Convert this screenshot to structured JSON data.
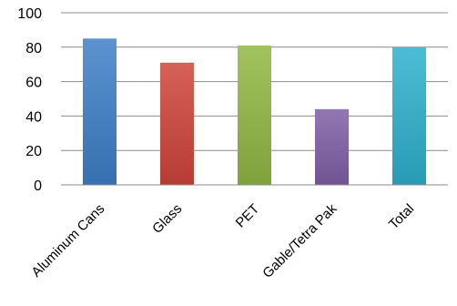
{
  "chart_data": {
    "type": "bar",
    "categories": [
      "Aluminum Cans",
      "Glass",
      "PET",
      "Gable/Tetra Pak",
      "Total"
    ],
    "values": [
      85,
      71,
      81,
      44,
      80
    ],
    "colors": [
      "#3f7fc8",
      "#d0443c",
      "#90b843",
      "#7f5fa6",
      "#2cb1cc"
    ],
    "ylim": [
      0,
      100
    ],
    "yticks": [
      0,
      20,
      40,
      60,
      80,
      100
    ],
    "title": "",
    "xlabel": "",
    "ylabel": "",
    "grid": true,
    "legend": false
  }
}
